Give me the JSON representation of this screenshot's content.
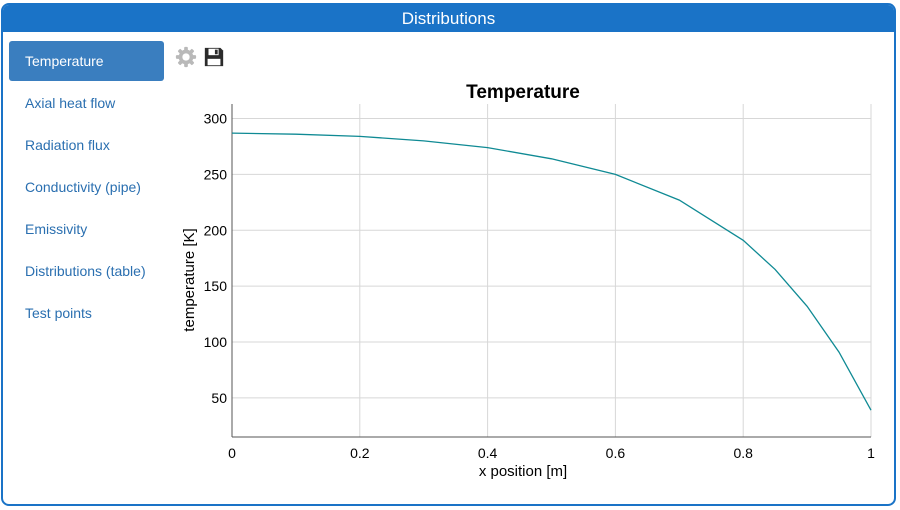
{
  "panel": {
    "title": "Distributions"
  },
  "nav": {
    "items": [
      {
        "label": "Temperature",
        "active": true
      },
      {
        "label": "Axial heat flow"
      },
      {
        "label": "Radiation flux"
      },
      {
        "label": "Conductivity (pipe)"
      },
      {
        "label": "Emissivity"
      },
      {
        "label": "Distributions (table)"
      },
      {
        "label": "Test points"
      }
    ]
  },
  "toolbar": {
    "settings_icon": "gear-icon",
    "save_icon": "floppy-disk-icon"
  },
  "chart_data": {
    "type": "line",
    "title": "Temperature",
    "xlabel": "x position [m]",
    "ylabel": "temperature [K]",
    "xlim": [
      0,
      1
    ],
    "ylim": [
      15,
      313
    ],
    "xticks": [
      "0",
      "0.2",
      "0.4",
      "0.6",
      "0.8",
      "1"
    ],
    "yticks": [
      "50",
      "100",
      "150",
      "200",
      "250",
      "300"
    ],
    "grid": true,
    "series": [
      {
        "color": "#0f8a94",
        "x": [
          0,
          0.1,
          0.2,
          0.3,
          0.4,
          0.5,
          0.6,
          0.7,
          0.8,
          0.85,
          0.9,
          0.95,
          1.0
        ],
        "y": [
          287,
          286,
          284,
          280,
          274,
          264,
          250,
          227,
          191,
          165,
          132,
          91,
          39
        ]
      }
    ]
  }
}
